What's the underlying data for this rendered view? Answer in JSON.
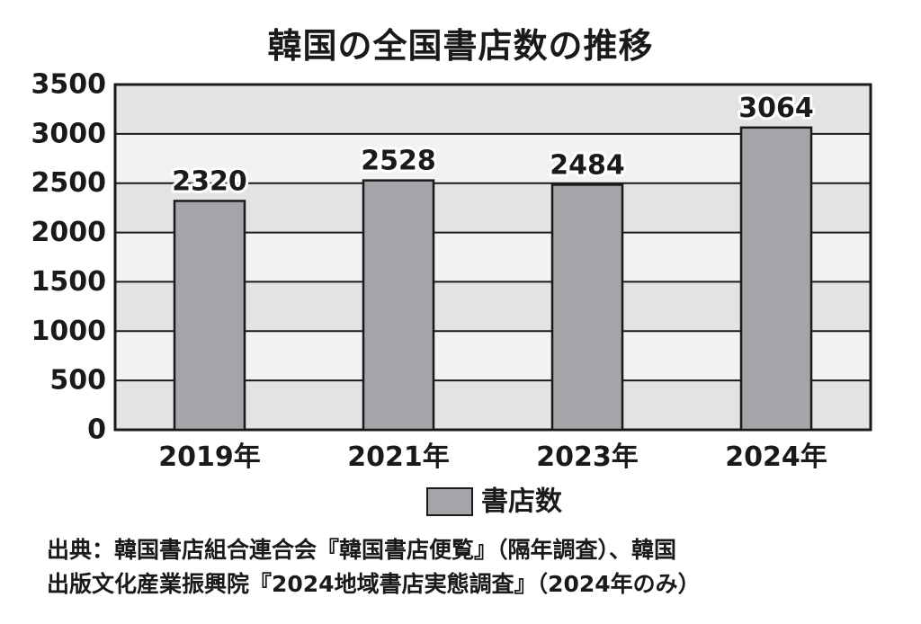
{
  "chart_data": {
    "type": "bar",
    "title": "韓国の全国書店数の推移",
    "categories": [
      "2019年",
      "2021年",
      "2023年",
      "2024年"
    ],
    "series": [
      {
        "name": "書店数",
        "values": [
          2320,
          2528,
          2484,
          3064
        ]
      }
    ],
    "data_labels": [
      "2320",
      "2528",
      "2484",
      "3064"
    ],
    "ylim": [
      0,
      3500
    ],
    "yticks": [
      "0",
      "500",
      "1000",
      "1500",
      "2000",
      "2500",
      "3000",
      "3500"
    ],
    "grid": true,
    "legend_position": "bottom-center",
    "colors": {
      "bar": "#a4a5a8",
      "band_light": "#f2f2f2",
      "band_dark": "#e3e3e3",
      "frame": "#1a1a1a"
    }
  },
  "source": {
    "line1": "出典：韓国書店組合連合会『韓国書店便覧』（隔年調査）、韓国",
    "line2": "出版文化産業振興院『2024地域書店実態調査』（2024年のみ）"
  }
}
